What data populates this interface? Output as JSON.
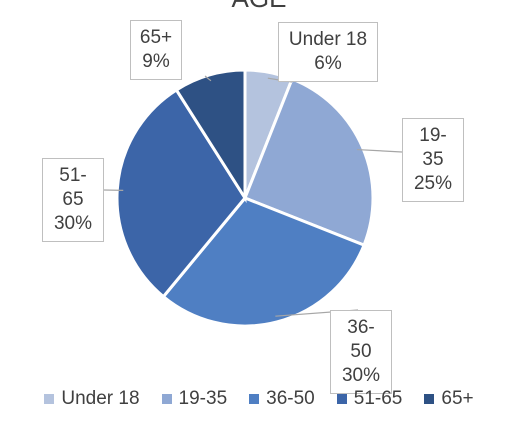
{
  "chart_data": {
    "type": "pie",
    "title": "AGE",
    "categories": [
      "Under 18",
      "19-35",
      "36-50",
      "51-65",
      "65+"
    ],
    "values": [
      6,
      25,
      30,
      30,
      9
    ],
    "value_labels": [
      "6%",
      "25%",
      "30%",
      "30%",
      "9%"
    ],
    "colors": [
      "#b4c3de",
      "#8fa8d4",
      "#4f7fc3",
      "#3c65a8",
      "#2e5184"
    ],
    "legend": "bottom"
  }
}
